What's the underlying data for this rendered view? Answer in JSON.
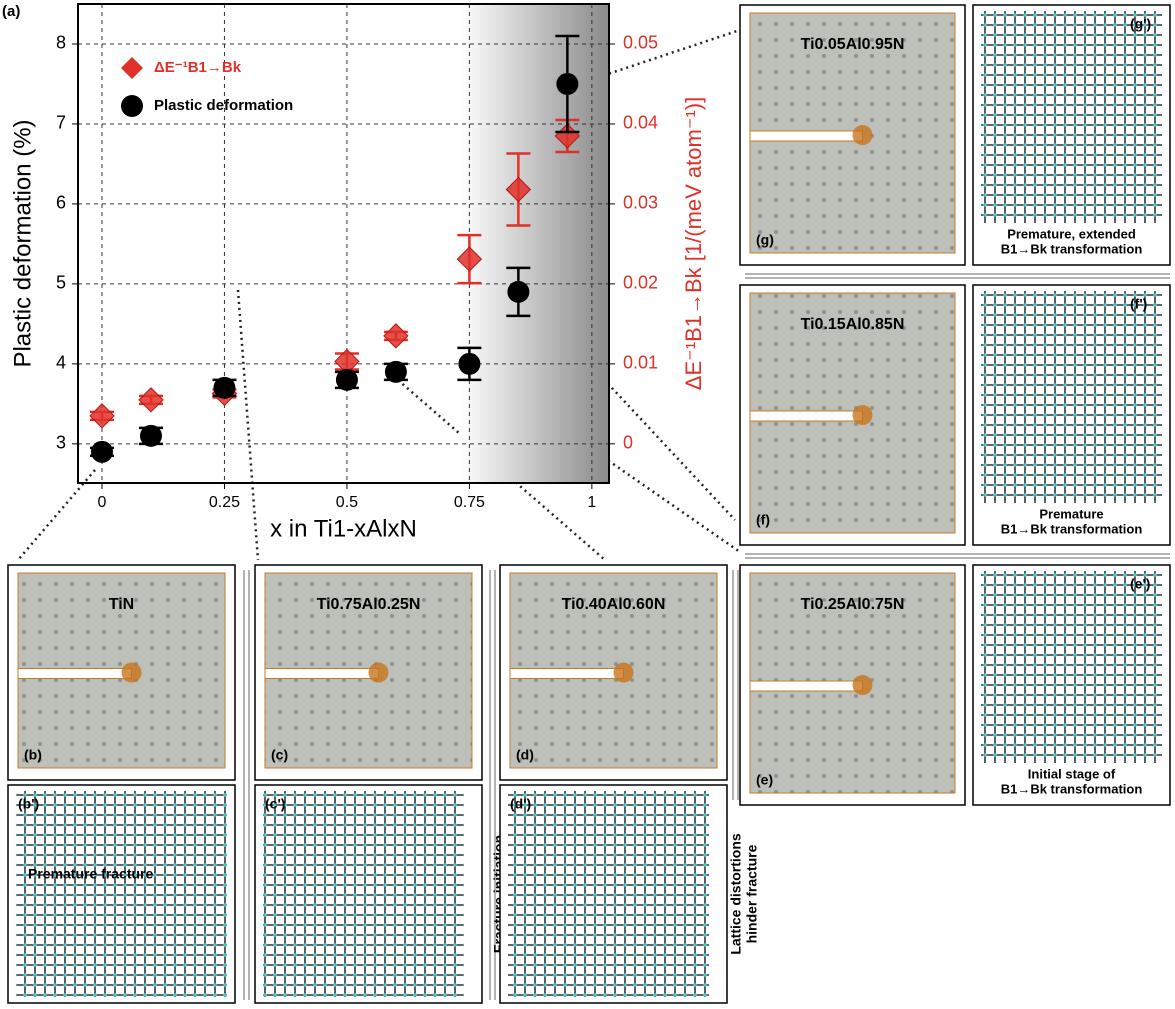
{
  "chart_data": {
    "type": "scatter",
    "panel_label": "(a)",
    "xlabel": "x in Ti1-xAlxN",
    "ylabel": "Plastic deformation (%)",
    "y2label": "ΔE⁻¹B1→Bk [1/(meV atom⁻¹)]",
    "x": [
      0,
      0.1,
      0.25,
      0.5,
      0.6,
      0.75,
      0.85,
      0.95
    ],
    "xlim": [
      -0.049,
      1.035
    ],
    "xticks": [
      0,
      0.25,
      0.5,
      0.75,
      1
    ],
    "ylim": [
      2.51,
      8.5
    ],
    "yticks": [
      3,
      4,
      5,
      6,
      7,
      8
    ],
    "y2lim": [
      -0.0049,
      0.055
    ],
    "y2ticks": [
      0,
      0.01,
      0.02,
      0.03,
      0.04,
      0.05
    ],
    "grid": true,
    "legend": "upper left",
    "series": [
      {
        "name": "ΔE⁻¹B1→Bk",
        "color": "#e0302a",
        "marker": "diamond",
        "axis": "y2",
        "values": [
          0.0035,
          0.0055,
          0.0063,
          0.0103,
          0.0135,
          0.0231,
          0.0318,
          0.0385
        ],
        "errors": [
          0.0005,
          0.0005,
          0.0005,
          0.001,
          0.0005,
          0.003,
          0.0045,
          0.002
        ]
      },
      {
        "name": "Plastic deformation",
        "color": "#000000",
        "marker": "circle",
        "values": [
          2.9,
          3.1,
          3.7,
          3.8,
          3.9,
          4.0,
          4.9,
          7.5
        ],
        "errors": [
          0.05,
          0.1,
          0.1,
          0.1,
          0.1,
          0.2,
          0.3,
          0.6
        ]
      }
    ]
  },
  "panels": [
    {
      "label": "(g)",
      "title": "Ti0.05Al0.95N"
    },
    {
      "label": "(g')",
      "caption": [
        "Premature, extended",
        "B1→Bk transformation"
      ]
    },
    {
      "label": "(f)",
      "title": "Ti0.15Al0.85N"
    },
    {
      "label": "(f')",
      "caption": [
        "Premature",
        "B1→Bk transformation"
      ]
    },
    {
      "label": "(e)",
      "title": "Ti0.25Al0.75N"
    },
    {
      "label": "(e')",
      "caption": [
        "Initial stage of",
        "B1→Bk transformation"
      ]
    },
    {
      "label": "(b)",
      "title": "TiN"
    },
    {
      "label": "(b')",
      "caption": [
        "Premature fracture"
      ]
    },
    {
      "label": "(c)",
      "title": "Ti0.75Al0.25N"
    },
    {
      "label": "(c')",
      "caption": [
        "Fracture initiation"
      ]
    },
    {
      "label": "(d)",
      "title": "Ti0.40Al0.60N"
    },
    {
      "label": "(d')",
      "caption": [
        "Lattice distortions",
        "hinder fracture"
      ]
    }
  ]
}
